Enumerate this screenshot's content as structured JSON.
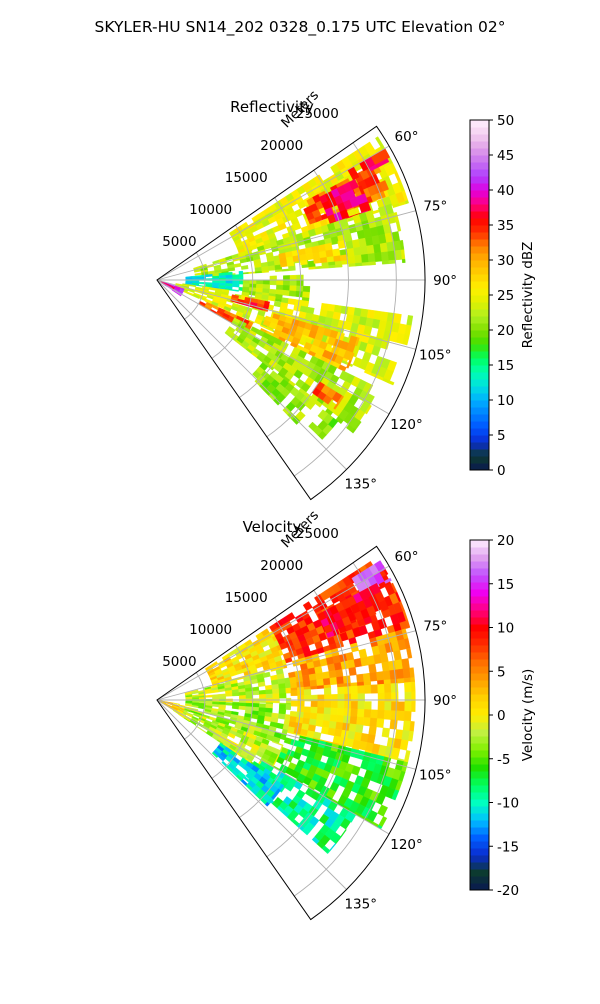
{
  "figure": {
    "suptitle": "SKYLER-HU  SN14_202  0328_0.175 UTC Elevation 02°"
  },
  "chart_data": [
    {
      "type": "heatmap",
      "projection": "polar-sector",
      "title": "Reflectivity",
      "radial_label": "Meters",
      "radial_ticks": [
        "5000",
        "10000",
        "15000",
        "20000",
        "25000"
      ],
      "radial_tick_values": [
        5000,
        10000,
        15000,
        20000,
        25000
      ],
      "radial_range": [
        0,
        28000
      ],
      "angle_ticks": [
        "60°",
        "75°",
        "90°",
        "105°",
        "120°",
        "135°"
      ],
      "angle_tick_values": [
        60,
        75,
        90,
        105,
        120,
        135
      ],
      "angle_range": [
        55,
        145
      ],
      "grid": true,
      "colorbar": {
        "label": "Reflectivity dBZ",
        "ticks": [
          "0",
          "5",
          "10",
          "15",
          "20",
          "25",
          "30",
          "35",
          "40",
          "45",
          "50"
        ],
        "tick_values": [
          0,
          5,
          10,
          15,
          20,
          25,
          30,
          35,
          40,
          45,
          50
        ],
        "range": [
          0,
          50
        ]
      },
      "echo_cells": [
        {
          "az_from": 57,
          "az_to": 73,
          "r_from": 9000,
          "r_to": 27500,
          "value": 25
        },
        {
          "az_from": 62,
          "az_to": 70,
          "r_from": 17000,
          "r_to": 26000,
          "value": 33
        },
        {
          "az_from": 60,
          "az_to": 63,
          "r_from": 23000,
          "r_to": 27500,
          "value": 36
        },
        {
          "az_from": 63,
          "az_to": 72,
          "r_from": 19000,
          "r_to": 23500,
          "value": 37
        },
        {
          "az_from": 72,
          "az_to": 86,
          "r_from": 4000,
          "r_to": 26000,
          "value": 22
        },
        {
          "az_from": 78,
          "az_to": 84,
          "r_from": 13000,
          "r_to": 20000,
          "value": 27
        },
        {
          "az_from": 84,
          "az_to": 98,
          "r_from": 3000,
          "r_to": 9000,
          "value": 13
        },
        {
          "az_from": 88,
          "az_to": 100,
          "r_from": 9000,
          "r_to": 16000,
          "value": 22
        },
        {
          "az_from": 98,
          "az_to": 114,
          "r_from": 2000,
          "r_to": 27000,
          "value": 24
        },
        {
          "az_from": 101,
          "az_to": 106,
          "r_from": 8000,
          "r_to": 12000,
          "value": 35
        },
        {
          "az_from": 106,
          "az_to": 116,
          "r_from": 12000,
          "r_to": 22000,
          "value": 29
        },
        {
          "az_from": 114,
          "az_to": 120,
          "r_from": 5000,
          "r_to": 11000,
          "value": 33
        },
        {
          "az_from": 116,
          "az_to": 128,
          "r_from": 9000,
          "r_to": 26000,
          "value": 22
        },
        {
          "az_from": 122,
          "az_to": 126,
          "r_from": 20000,
          "r_to": 23000,
          "value": 33
        },
        {
          "az_from": 128,
          "az_to": 136,
          "r_from": 14000,
          "r_to": 21000,
          "value": 21
        },
        {
          "az_from": 128,
          "az_to": 134,
          "r_from": 22000,
          "r_to": 24000,
          "value": 20
        },
        {
          "az_from": 108,
          "az_to": 124,
          "r_from": 500,
          "r_to": 3000,
          "value": 42
        },
        {
          "az_from": 112,
          "az_to": 120,
          "r_from": 400,
          "r_to": 2000,
          "value": 37
        }
      ]
    },
    {
      "type": "heatmap",
      "projection": "polar-sector",
      "title": "Velocity",
      "radial_label": "Meters",
      "radial_ticks": [
        "5000",
        "10000",
        "15000",
        "20000",
        "25000"
      ],
      "radial_tick_values": [
        5000,
        10000,
        15000,
        20000,
        25000
      ],
      "radial_range": [
        0,
        28000
      ],
      "angle_ticks": [
        "60°",
        "75°",
        "90°",
        "105°",
        "120°",
        "135°"
      ],
      "angle_tick_values": [
        60,
        75,
        90,
        105,
        120,
        135
      ],
      "angle_range": [
        55,
        145
      ],
      "grid": true,
      "colorbar": {
        "label": "Velocity (m/s)",
        "ticks": [
          "-20",
          "-15",
          "-10",
          "-5",
          "0",
          "5",
          "10",
          "15",
          "20"
        ],
        "tick_values": [
          -20,
          -15,
          -10,
          -5,
          0,
          5,
          10,
          15,
          20
        ],
        "range": [
          -20,
          20
        ]
      },
      "echo_cells": [
        {
          "az_from": 57,
          "az_to": 74,
          "r_from": 14000,
          "r_to": 27500,
          "value": 8
        },
        {
          "az_from": 58,
          "az_to": 63,
          "r_from": 24000,
          "r_to": 27500,
          "value": 15
        },
        {
          "az_from": 62,
          "az_to": 70,
          "r_from": 19000,
          "r_to": 26000,
          "value": 10
        },
        {
          "az_from": 57,
          "az_to": 76,
          "r_from": 6000,
          "r_to": 14000,
          "value": 1
        },
        {
          "az_from": 74,
          "az_to": 86,
          "r_from": 14000,
          "r_to": 27000,
          "value": 4
        },
        {
          "az_from": 76,
          "az_to": 92,
          "r_from": 3000,
          "r_to": 14000,
          "value": -2
        },
        {
          "az_from": 86,
          "az_to": 104,
          "r_from": 14000,
          "r_to": 27000,
          "value": 1
        },
        {
          "az_from": 92,
          "az_to": 110,
          "r_from": 3000,
          "r_to": 14000,
          "value": -3
        },
        {
          "az_from": 104,
          "az_to": 120,
          "r_from": 14000,
          "r_to": 27000,
          "value": -6
        },
        {
          "az_from": 110,
          "az_to": 124,
          "r_from": 2000,
          "r_to": 14000,
          "value": -2
        },
        {
          "az_from": 120,
          "az_to": 132,
          "r_from": 12000,
          "r_to": 24000,
          "value": -9
        },
        {
          "az_from": 124,
          "az_to": 134,
          "r_from": 8000,
          "r_to": 16000,
          "value": -11
        },
        {
          "az_from": 100,
          "az_to": 122,
          "r_from": 300,
          "r_to": 3000,
          "value": 2
        }
      ]
    }
  ]
}
